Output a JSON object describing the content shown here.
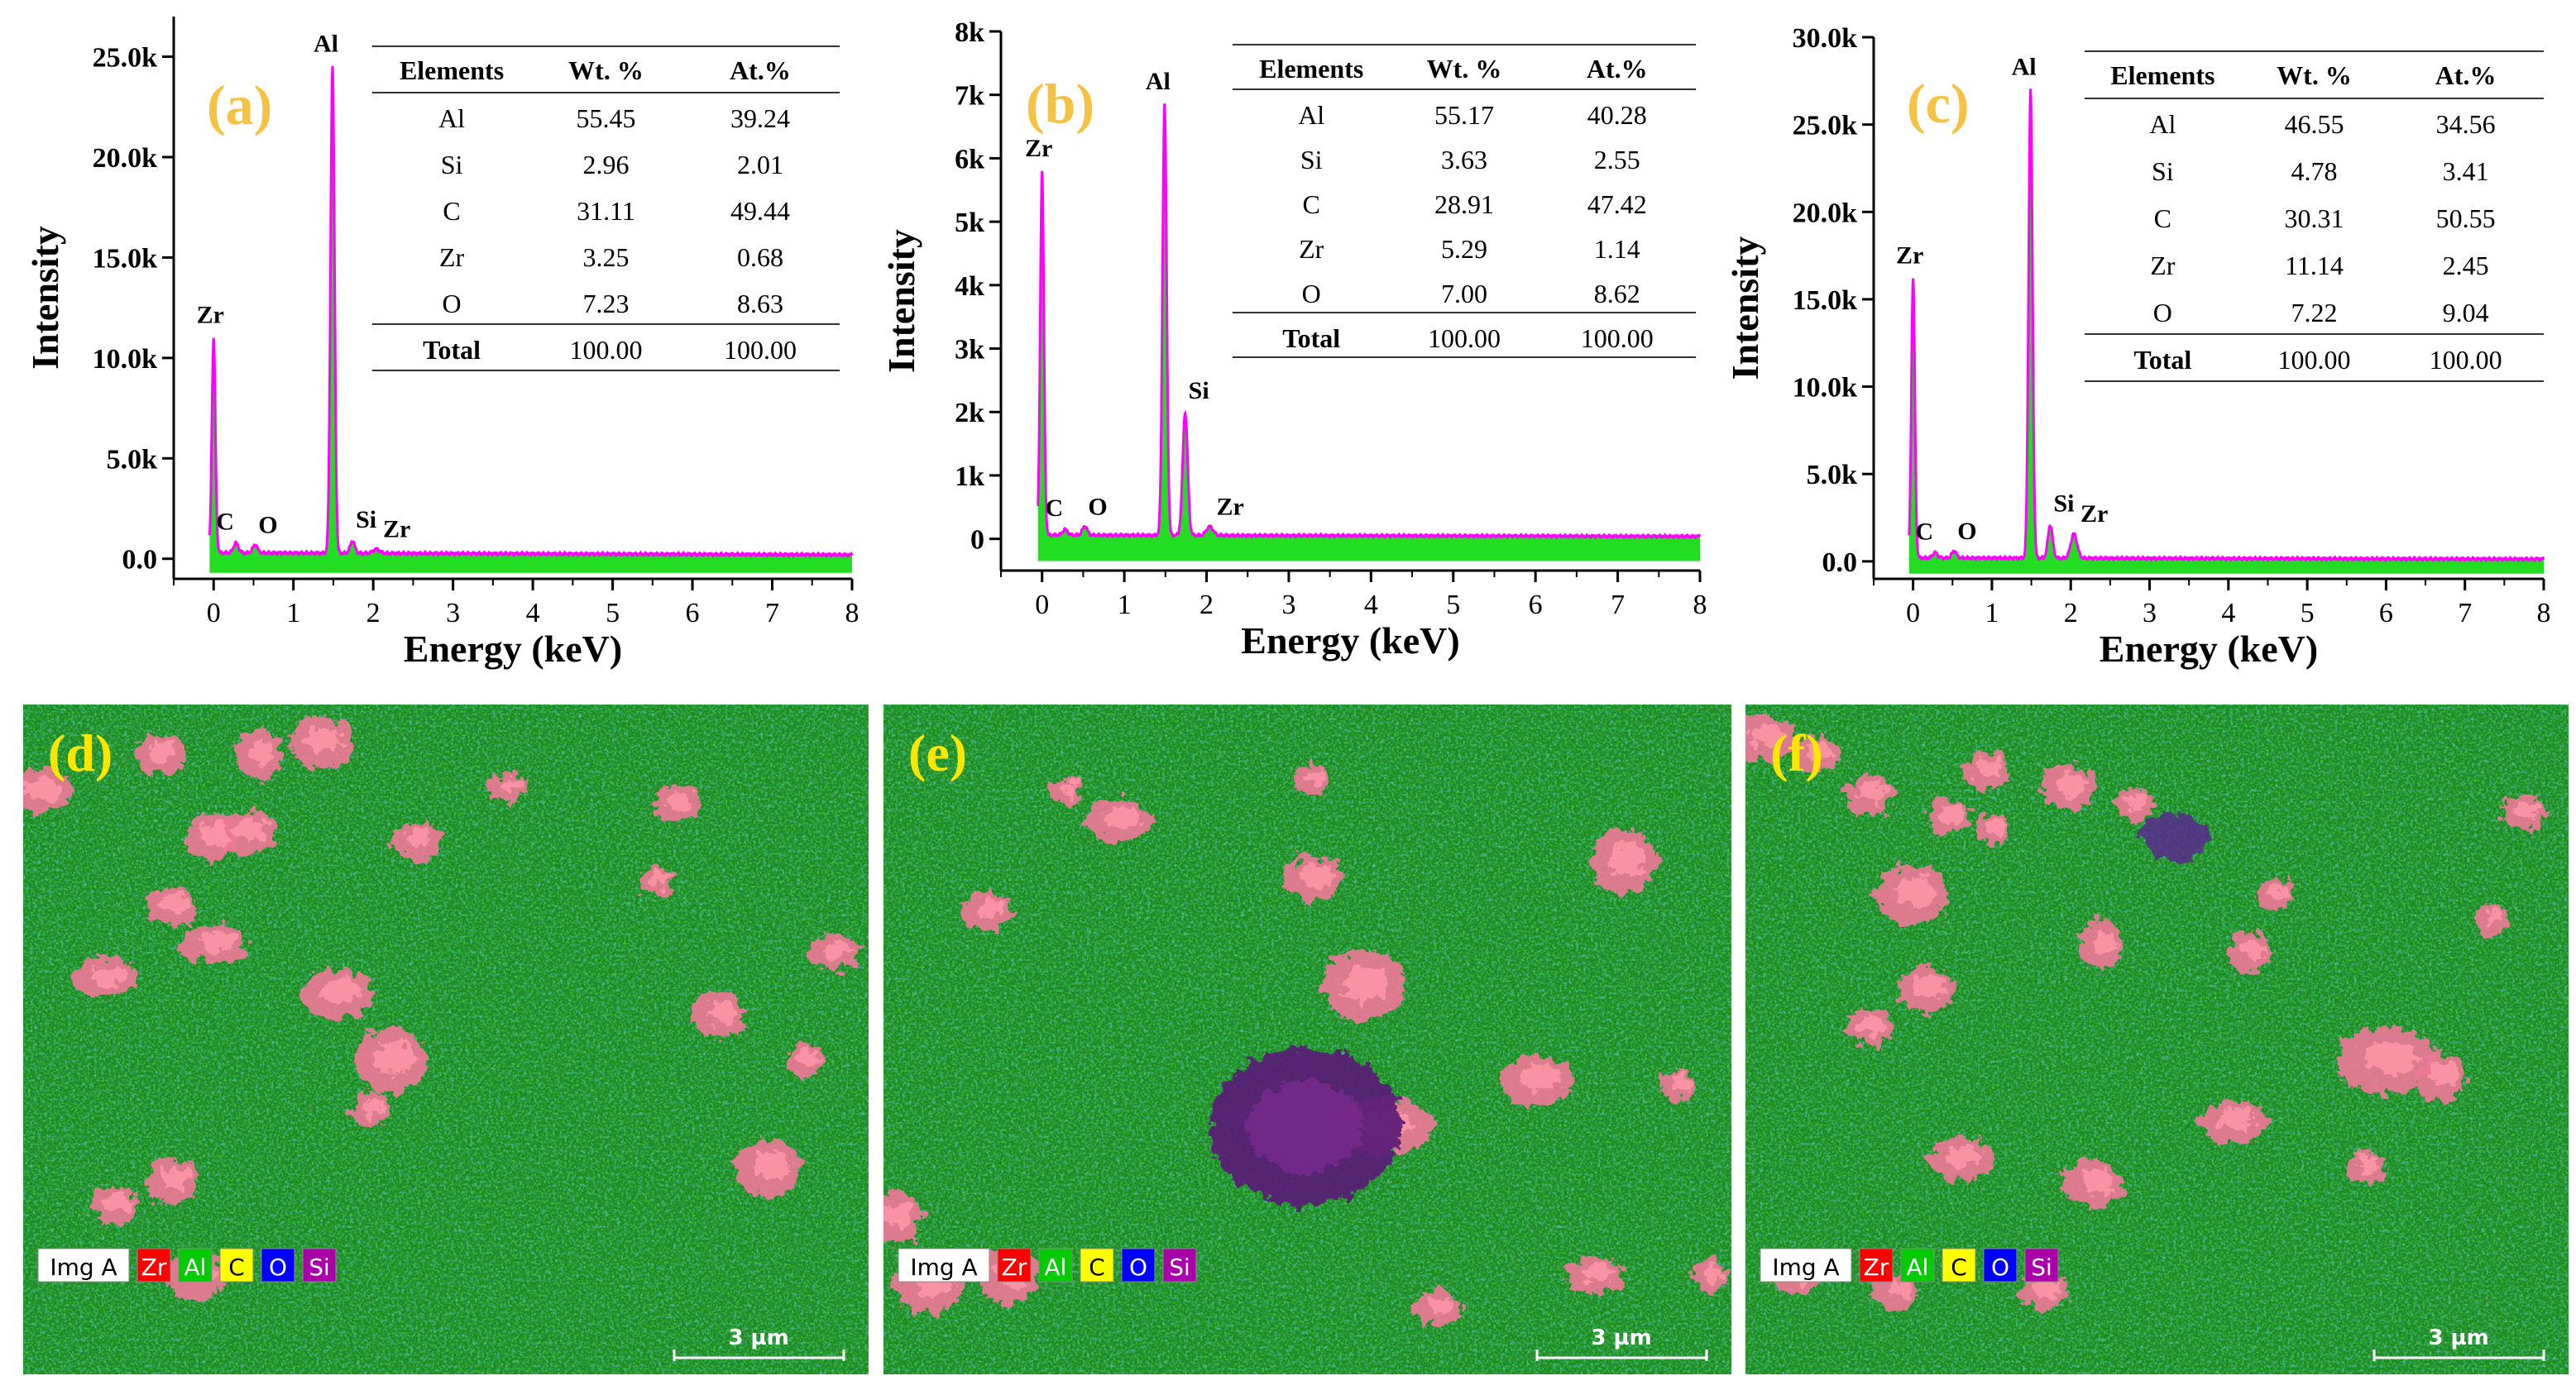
{
  "colors": {
    "fill": "#22dd22",
    "line": "#ff00ff",
    "panel_label": "#f5c242",
    "map_label": "#ffe600",
    "zr": "#ff0000",
    "al": "#00cc00",
    "c": "#ffff00",
    "o": "#0000ff",
    "si": "#aa00aa"
  },
  "chart_data": [
    {
      "type": "line",
      "label": "(a)",
      "xlabel": "Energy (keV)",
      "ylabel": "Intensity",
      "xlim": [
        -0.5,
        8
      ],
      "ylim": [
        -1000,
        27000
      ],
      "xticks": [
        "0",
        "1",
        "2",
        "3",
        "4",
        "5",
        "6",
        "7",
        "8"
      ],
      "yticks": [
        {
          "label": "0.0",
          "value": 0
        },
        {
          "label": "5.0k",
          "value": 5000
        },
        {
          "label": "10.0k",
          "value": 10000
        },
        {
          "label": "15.0k",
          "value": 15000
        },
        {
          "label": "20.0k",
          "value": 20000
        },
        {
          "label": "25.0k",
          "value": 25000
        }
      ],
      "baseline": 300,
      "peaks": [
        {
          "name": "Zr",
          "x": 0.0,
          "y": 11000
        },
        {
          "name": "C",
          "x": 0.28,
          "y": 800
        },
        {
          "name": "O",
          "x": 0.52,
          "y": 700
        },
        {
          "name": "Al",
          "x": 1.49,
          "y": 24500
        },
        {
          "name": "Si",
          "x": 1.74,
          "y": 900
        },
        {
          "name": "Zr",
          "x": 2.04,
          "y": 500
        }
      ],
      "table": {
        "headers": [
          "Elements",
          "Wt. %",
          "At.%"
        ],
        "rows": [
          [
            "Al",
            "55.45",
            "39.24"
          ],
          [
            "Si",
            "2.96",
            "2.01"
          ],
          [
            "C",
            "31.11",
            "49.44"
          ],
          [
            "Zr",
            "3.25",
            "0.68"
          ],
          [
            "O",
            "7.23",
            "8.63"
          ]
        ],
        "total": [
          "Total",
          "100.00",
          "100.00"
        ]
      }
    },
    {
      "type": "line",
      "label": "(b)",
      "xlabel": "Energy (keV)",
      "ylabel": "Intensity",
      "xlim": [
        -0.5,
        8
      ],
      "ylim": [
        -500,
        8000
      ],
      "xticks": [
        "0",
        "1",
        "2",
        "3",
        "4",
        "5",
        "6",
        "7",
        "8"
      ],
      "yticks": [
        {
          "label": "0",
          "value": 0
        },
        {
          "label": "1k",
          "value": 1000
        },
        {
          "label": "2k",
          "value": 2000
        },
        {
          "label": "3k",
          "value": 3000
        },
        {
          "label": "4k",
          "value": 4000
        },
        {
          "label": "5k",
          "value": 5000
        },
        {
          "label": "6k",
          "value": 6000
        },
        {
          "label": "7k",
          "value": 7000
        },
        {
          "label": "8k",
          "value": 8000
        }
      ],
      "baseline": 60,
      "peaks": [
        {
          "name": "Zr",
          "x": 0.0,
          "y": 5800
        },
        {
          "name": "C",
          "x": 0.28,
          "y": 150
        },
        {
          "name": "O",
          "x": 0.52,
          "y": 200
        },
        {
          "name": "Al",
          "x": 1.49,
          "y": 6850
        },
        {
          "name": "Si",
          "x": 1.74,
          "y": 2000
        },
        {
          "name": "Zr",
          "x": 2.04,
          "y": 200
        }
      ],
      "table": {
        "headers": [
          "Elements",
          "Wt. %",
          "At.%"
        ],
        "rows": [
          [
            "Al",
            "55.17",
            "40.28"
          ],
          [
            "Si",
            "3.63",
            "2.55"
          ],
          [
            "C",
            "28.91",
            "47.42"
          ],
          [
            "Zr",
            "5.29",
            "1.14"
          ],
          [
            "O",
            "7.00",
            "8.62"
          ]
        ],
        "total": [
          "Total",
          "100.00",
          "100.00"
        ]
      }
    },
    {
      "type": "line",
      "label": "(c)",
      "xlabel": "Energy (keV)",
      "ylabel": "Intensity",
      "xlim": [
        -0.5,
        8
      ],
      "ylim": [
        -1000,
        30000
      ],
      "xticks": [
        "0",
        "1",
        "2",
        "3",
        "4",
        "5",
        "6",
        "7",
        "8"
      ],
      "yticks": [
        {
          "label": "0.0",
          "value": 0
        },
        {
          "label": "5.0k",
          "value": 5000
        },
        {
          "label": "10.0k",
          "value": 10000
        },
        {
          "label": "15.0k",
          "value": 15000
        },
        {
          "label": "20.0k",
          "value": 20000
        },
        {
          "label": "25.0k",
          "value": 25000
        },
        {
          "label": "30.0k",
          "value": 30000
        }
      ],
      "baseline": 200,
      "peaks": [
        {
          "name": "Zr",
          "x": 0.0,
          "y": 16200
        },
        {
          "name": "C",
          "x": 0.28,
          "y": 500
        },
        {
          "name": "O",
          "x": 0.52,
          "y": 600
        },
        {
          "name": "Al",
          "x": 1.49,
          "y": 27000
        },
        {
          "name": "Si",
          "x": 1.74,
          "y": 2100
        },
        {
          "name": "Zr",
          "x": 2.04,
          "y": 1600
        }
      ],
      "table": {
        "headers": [
          "Elements",
          "Wt. %",
          "At.%"
        ],
        "rows": [
          [
            "Al",
            "46.55",
            "34.56"
          ],
          [
            "Si",
            "4.78",
            "3.41"
          ],
          [
            "C",
            "30.31",
            "50.55"
          ],
          [
            "Zr",
            "11.14",
            "2.45"
          ],
          [
            "O",
            "7.22",
            "9.04"
          ]
        ],
        "total": [
          "Total",
          "100.00",
          "100.00"
        ]
      }
    }
  ],
  "maps": [
    {
      "label": "(d)",
      "legend": [
        "Img A",
        "Zr",
        "Al",
        "C",
        "O",
        "Si"
      ],
      "scale_bar": "3 µm"
    },
    {
      "label": "(e)",
      "legend": [
        "Img A",
        "Zr",
        "Al",
        "C",
        "O",
        "Si"
      ],
      "scale_bar": "3 µm"
    },
    {
      "label": "(f)",
      "legend": [
        "Img A",
        "Zr",
        "Al",
        "C",
        "O",
        "Si"
      ],
      "scale_bar": "3 µm"
    }
  ]
}
